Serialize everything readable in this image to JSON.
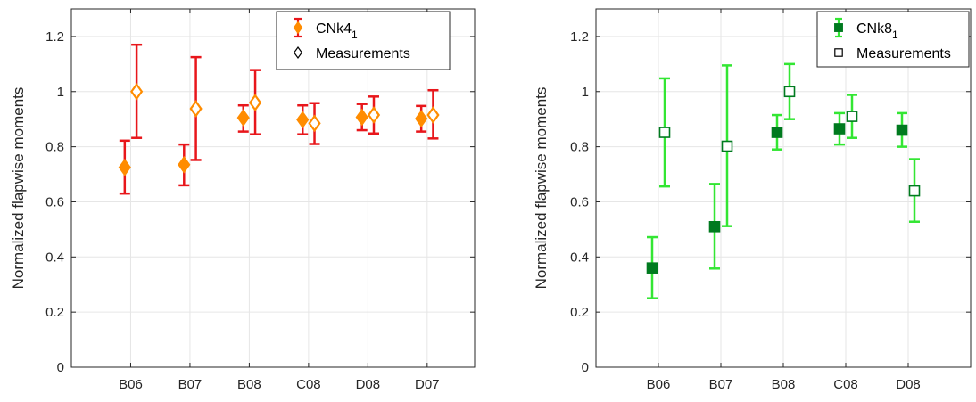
{
  "chart_data": [
    {
      "type": "scatter",
      "ylabel": "Normalized flapwise moments",
      "ylim": [
        0,
        1.3
      ],
      "yticks": [
        "0",
        "0.2",
        "0.4",
        "0.6",
        "0.8",
        "1",
        "1.2"
      ],
      "categories": [
        "B06",
        "B07",
        "B08",
        "C08",
        "D08",
        "D07"
      ],
      "grid": true,
      "legend_position": "top-right",
      "series": [
        {
          "name": "CNk4",
          "name_subscript": "1",
          "marker": "filled-diamond",
          "values": [
            0.725,
            0.735,
            0.905,
            0.898,
            0.907,
            0.902
          ],
          "err_low": [
            0.63,
            0.66,
            0.855,
            0.845,
            0.86,
            0.855
          ],
          "err_high": [
            0.822,
            0.808,
            0.95,
            0.95,
            0.955,
            0.948
          ]
        },
        {
          "name": "Measurements",
          "marker": "open-diamond",
          "values": [
            1.0,
            0.938,
            0.96,
            0.885,
            0.915,
            0.915
          ],
          "err_low": [
            0.832,
            0.752,
            0.845,
            0.81,
            0.848,
            0.83
          ],
          "err_high": [
            1.17,
            1.125,
            1.078,
            0.958,
            0.982,
            1.005
          ]
        }
      ]
    },
    {
      "type": "scatter",
      "ylabel": "Normalized flapwise moments",
      "ylim": [
        0,
        1.3
      ],
      "yticks": [
        "0",
        "0.2",
        "0.4",
        "0.6",
        "0.8",
        "1",
        "1.2"
      ],
      "categories": [
        "B06",
        "B07",
        "B08",
        "C08",
        "D08"
      ],
      "grid": true,
      "legend_position": "top-right",
      "series": [
        {
          "name": "CNk8",
          "name_subscript": "1",
          "marker": "filled-square",
          "values": [
            0.36,
            0.51,
            0.852,
            0.865,
            0.86
          ],
          "err_low": [
            0.25,
            0.358,
            0.79,
            0.808,
            0.8
          ],
          "err_high": [
            0.472,
            0.665,
            0.915,
            0.922,
            0.922
          ]
        },
        {
          "name": "Measurements",
          "marker": "open-square",
          "values": [
            0.852,
            0.802,
            1.0,
            0.91,
            0.64
          ],
          "err_low": [
            0.656,
            0.512,
            0.9,
            0.832,
            0.528
          ],
          "err_high": [
            1.048,
            1.095,
            1.1,
            0.988,
            0.755
          ]
        }
      ]
    }
  ],
  "colors": {
    "cnk4_marker": "#ff8c00",
    "cnk4_errorbar": "#e8161b",
    "cnk8_marker": "#007a1f",
    "cnk8_errorbar": "#33e633",
    "grid": "#e6e6e6",
    "axis": "#262626"
  }
}
